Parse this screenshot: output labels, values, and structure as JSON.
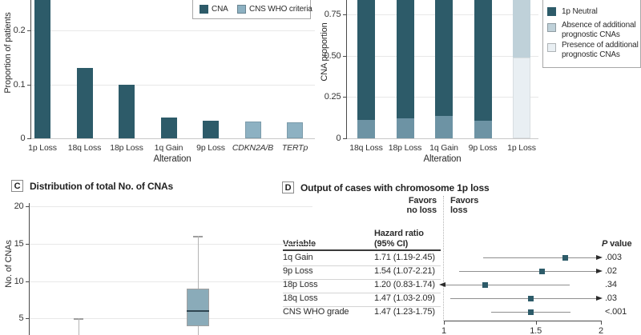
{
  "figure": {
    "colors": {
      "dark_teal": "#2d5b69",
      "light_blue": "#8db1c2",
      "mid_slate": "#6d93a4",
      "absence_light": "#bfd1d9",
      "presence_lighter": "#e9eff3",
      "box_fill": "#8aabb9"
    },
    "panels": {
      "a": {
        "ylabel": "Proportion of patients",
        "xlabel": "Alteration",
        "legend": [
          {
            "label": "CNA",
            "color": "#2d5b69"
          },
          {
            "label": "CNS WHO criteria",
            "color": "#8db1c2"
          }
        ]
      },
      "b": {
        "ylabel": "CNA proportion",
        "xlabel": "Alteration",
        "legend": [
          {
            "label": "1p Neutral",
            "color": "#2d5b69"
          },
          {
            "label": "Absence of additional prognostic CNAs",
            "color": "#bfd1d9"
          },
          {
            "label": "Presence of additional prognostic CNAs",
            "color": "#e9eff3"
          }
        ]
      },
      "c": {
        "panel_letter": "C",
        "title": "Distribution of total No. of CNAs",
        "ylabel": "No. of CNAs"
      },
      "d": {
        "panel_letter": "D",
        "title": "Output of cases with chromosome 1p loss",
        "favors_no_loss": [
          "Favors",
          "no loss"
        ],
        "favors_loss": [
          "Favors",
          "loss"
        ],
        "col_variable": "Variable",
        "col_hr": [
          "Hazard ratio",
          "(95% CI)"
        ],
        "col_p": {
          "i": "P",
          "rest": " value"
        }
      }
    }
  },
  "chart_data": [
    {
      "id": "a",
      "type": "bar",
      "ylabel": "Proportion of patients",
      "xlabel": "Alteration",
      "categories": [
        "1p Loss",
        "18q Loss",
        "18p Loss",
        "1q Gain",
        "9p Loss",
        "CDKN2A/B",
        "TERTp"
      ],
      "italic_categories": [
        "CDKN2A/B",
        "TERTp"
      ],
      "values": [
        0.26,
        0.13,
        0.1,
        0.038,
        0.033,
        0.031,
        0.029
      ],
      "bar_colors": [
        "#2d5b69",
        "#2d5b69",
        "#2d5b69",
        "#2d5b69",
        "#2d5b69",
        "#8db1c2",
        "#8db1c2"
      ],
      "yticks": [
        {
          "v": 0,
          "label": "0"
        },
        {
          "v": 0.1,
          "label": "0.1"
        },
        {
          "v": 0.2,
          "label": "0.2"
        }
      ],
      "ylim_visible": [
        0,
        0.257
      ],
      "legend": [
        "CNA",
        "CNS WHO criteria"
      ]
    },
    {
      "id": "b",
      "type": "stacked-bar",
      "ylabel": "CNA proportion",
      "xlabel": "Alteration",
      "categories": [
        "18q Loss",
        "18p Loss",
        "1q Gain",
        "9p Loss",
        "1p Loss"
      ],
      "yticks": [
        {
          "v": 0,
          "label": "0"
        },
        {
          "v": 0.25,
          "label": "0.25"
        },
        {
          "v": 0.5,
          "label": "0.50"
        },
        {
          "v": 0.75,
          "label": "0.75"
        }
      ],
      "ymax": 1.0,
      "ylim_visible": [
        0,
        0.84
      ],
      "bars": [
        {
          "segments": [
            {
              "value": 0.11,
              "color": "#6d93a4"
            },
            {
              "value": 0.89,
              "color": "#2d5b69"
            }
          ]
        },
        {
          "segments": [
            {
              "value": 0.12,
              "color": "#6d93a4"
            },
            {
              "value": 0.88,
              "color": "#2d5b69"
            }
          ]
        },
        {
          "segments": [
            {
              "value": 0.135,
              "color": "#6d93a4"
            },
            {
              "value": 0.865,
              "color": "#2d5b69"
            }
          ]
        },
        {
          "segments": [
            {
              "value": 0.105,
              "color": "#6d93a4"
            },
            {
              "value": 0.895,
              "color": "#2d5b69"
            }
          ]
        },
        {
          "segments": [
            {
              "value": 0.49,
              "color": "#e9eff3"
            },
            {
              "value": 0.51,
              "color": "#bfd1d9"
            }
          ]
        }
      ],
      "legend": [
        "1p Neutral",
        "Absence of additional prognostic CNAs",
        "Presence of additional prognostic CNAs"
      ]
    },
    {
      "id": "c",
      "type": "boxplot",
      "title": "Distribution of total No. of CNAs",
      "ylabel": "No. of CNAs",
      "yticks": [
        {
          "v": 5,
          "label": "5"
        },
        {
          "v": 10,
          "label": "10"
        },
        {
          "v": 15,
          "label": "15"
        },
        {
          "v": 20,
          "label": "20"
        }
      ],
      "boxes": [
        {
          "x_center": 98,
          "whisker_top": 5
        },
        {
          "x_center": 247,
          "q1": 4,
          "median": 6,
          "q3": 9,
          "whisker_top": 16
        }
      ]
    },
    {
      "id": "d",
      "type": "forest",
      "title": "Output of cases with chromosome 1p loss",
      "scale": "log",
      "axis_range": [
        1,
        2
      ],
      "axis_ticks": [
        {
          "v": 1,
          "label": "1"
        },
        {
          "v": 1.5,
          "label": "1.5"
        },
        {
          "v": 2,
          "label": "2"
        }
      ],
      "rows": [
        {
          "variable": "1q Gain",
          "hr_ci": "1.71 (1.19-2.45)",
          "hr": 1.71,
          "ci_low": 1.19,
          "ci_high": 2.45,
          "p_value": ".003"
        },
        {
          "variable": "9p Loss",
          "hr_ci": "1.54 (1.07-2.21)",
          "hr": 1.54,
          "ci_low": 1.07,
          "ci_high": 2.21,
          "p_value": ".02"
        },
        {
          "variable": "18p Loss",
          "hr_ci": "1.20 (0.83-1.74)",
          "hr": 1.2,
          "ci_low": 0.83,
          "ci_high": 1.74,
          "p_value": ".34"
        },
        {
          "variable": "18q Loss",
          "hr_ci": "1.47 (1.03-2.09)",
          "hr": 1.47,
          "ci_low": 1.03,
          "ci_high": 2.09,
          "p_value": ".03"
        },
        {
          "variable": "CNS WHO grade",
          "hr_ci": "1.47 (1.23-1.75)",
          "hr": 1.47,
          "ci_low": 1.23,
          "ci_high": 1.75,
          "p_value": "<.001"
        }
      ]
    }
  ]
}
